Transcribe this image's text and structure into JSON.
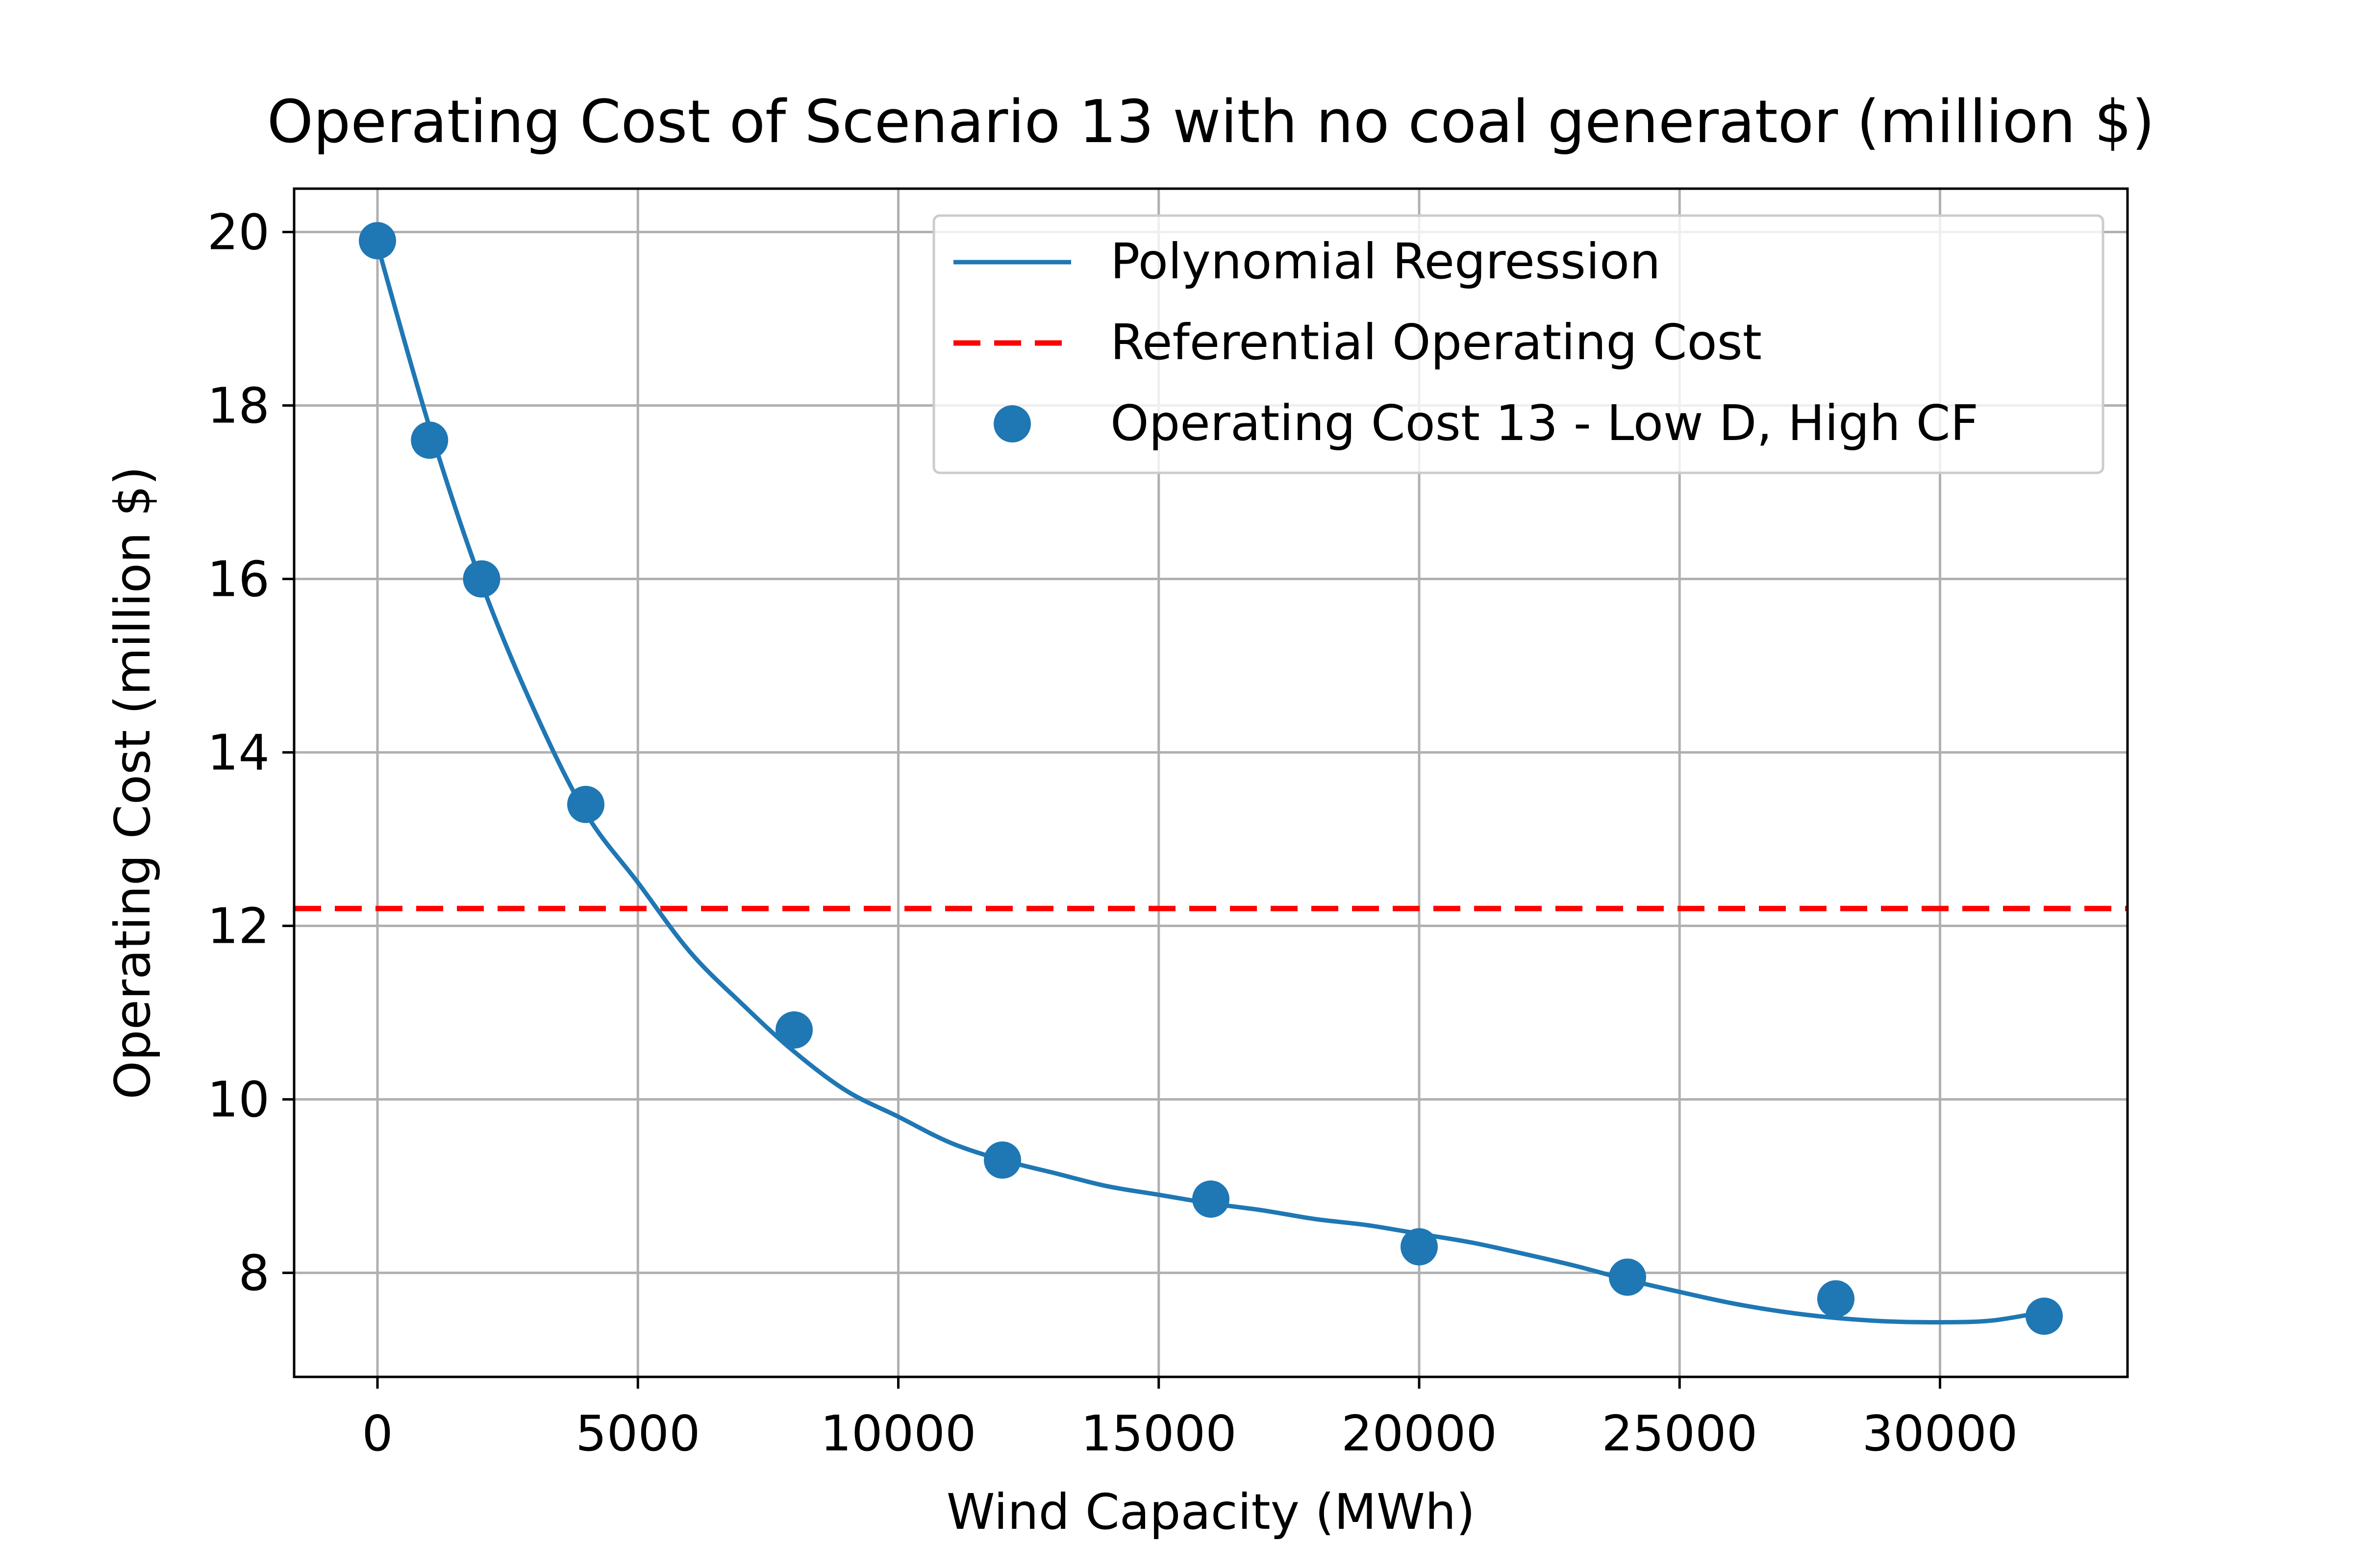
{
  "chart_data": {
    "type": "line",
    "title": "Operating Cost of Scenario 13 with no coal generator (million $)",
    "xlabel": "Wind Capacity (MWh)",
    "ylabel": "Operating Cost (million $)",
    "xlim": [
      -1600,
      33600
    ],
    "ylim": [
      6.8,
      20.5
    ],
    "xticks": [
      0,
      5000,
      10000,
      15000,
      20000,
      25000,
      30000
    ],
    "yticks": [
      8,
      10,
      12,
      14,
      16,
      18,
      20
    ],
    "grid": true,
    "legend_position": "top-right",
    "series": [
      {
        "name": "Polynomial Regression",
        "kind": "line",
        "color": "#1f77b4",
        "x": [
          0,
          1000,
          2000,
          3000,
          4000,
          5000,
          6000,
          7000,
          8000,
          9000,
          10000,
          11000,
          12000,
          13000,
          14000,
          15000,
          16000,
          17000,
          18000,
          19000,
          20000,
          21000,
          22000,
          23000,
          24000,
          25000,
          26000,
          27000,
          28000,
          29000,
          30000,
          31000,
          32000
        ],
        "y": [
          19.85,
          17.75,
          15.95,
          14.5,
          13.3,
          12.5,
          11.7,
          11.1,
          10.55,
          10.1,
          9.8,
          9.5,
          9.3,
          9.15,
          9.0,
          8.9,
          8.8,
          8.72,
          8.62,
          8.55,
          8.45,
          8.35,
          8.22,
          8.08,
          7.92,
          7.78,
          7.65,
          7.55,
          7.48,
          7.44,
          7.43,
          7.45,
          7.55
        ]
      },
      {
        "name": "Referential Operating Cost",
        "kind": "hline",
        "color": "#ff0000",
        "y": 12.2
      },
      {
        "name": "Operating Cost 13 - Low D, High CF",
        "kind": "scatter",
        "color": "#1f77b4",
        "x": [
          0,
          1000,
          2000,
          4000,
          8000,
          12000,
          16000,
          20000,
          24000,
          28000,
          32000
        ],
        "y": [
          19.9,
          17.6,
          16.0,
          13.4,
          10.8,
          9.3,
          8.85,
          8.3,
          7.95,
          7.7,
          7.5
        ]
      }
    ]
  }
}
